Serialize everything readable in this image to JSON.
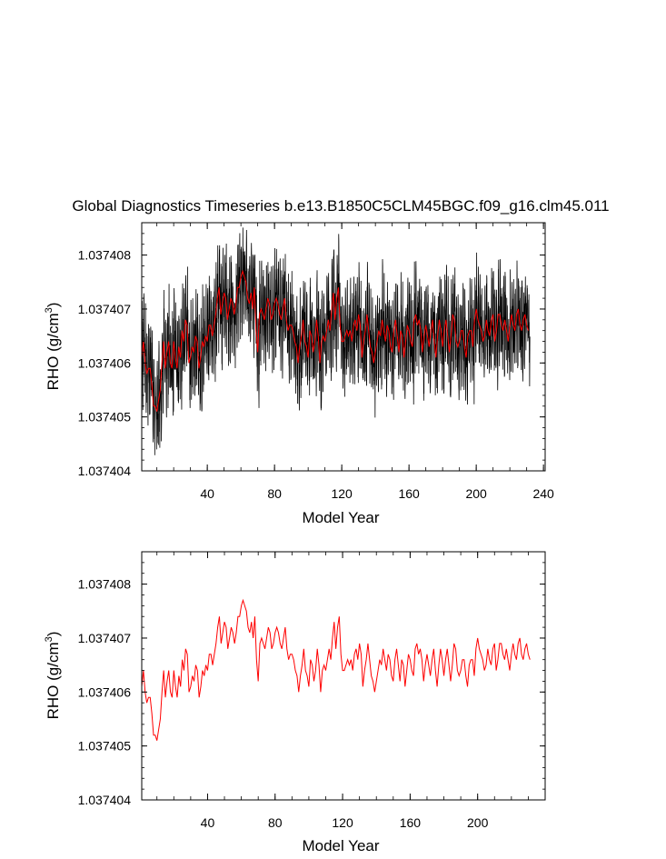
{
  "title": "Global Diagnostics Timeseries b.e13.B1850C5CLM45BGC.f09_g16.clm45.011",
  "colors": {
    "monthly": "#000000",
    "annual": "#ff0000",
    "axes": "#000000"
  },
  "chart_data": [
    {
      "type": "line",
      "xlabel": "Model Year",
      "ylabel": "RHO (g/cm",
      "ylabel_sup": "3",
      "ylabel_close": ")",
      "xlim": [
        1,
        241
      ],
      "ylim": [
        1.037404,
        1.0374086
      ],
      "xticks": [
        40,
        80,
        120,
        160,
        200,
        240
      ],
      "xtick_labels": [
        "40",
        "80",
        "120",
        "160",
        "200",
        "240"
      ],
      "yticks": [
        1.037404,
        1.037405,
        1.037406,
        1.037407,
        1.037408
      ],
      "ytick_labels": [
        "1.037404",
        "1.037405",
        "1.037406",
        "1.037407",
        "1.037408"
      ],
      "series": [
        {
          "style": "monthly-black",
          "seed": 7,
          "amplitude": 7.5e-07
        },
        {
          "style": "annual-red",
          "ref": "annual_values"
        }
      ]
    },
    {
      "type": "line",
      "xlabel": "Model Year",
      "ylabel": "RHO (g/cm",
      "ylabel_sup": "3",
      "ylabel_close": ")",
      "xlim": [
        1,
        240
      ],
      "ylim": [
        1.037404,
        1.0374086
      ],
      "xticks": [
        40,
        80,
        120,
        160,
        200
      ],
      "xtick_labels": [
        "40",
        "80",
        "120",
        "160",
        "200"
      ],
      "yticks": [
        1.037404,
        1.037405,
        1.037406,
        1.037407,
        1.037408
      ],
      "ytick_labels": [
        "1.037404",
        "1.037405",
        "1.037406",
        "1.037407",
        "1.037408"
      ],
      "series": [
        {
          "style": "annual-red",
          "ref": "annual_values"
        }
      ]
    }
  ],
  "annual_values": {
    "x_start": 1,
    "x_step": 1,
    "values": [
      1.0374061,
      1.0374064,
      1.037406,
      1.0374058,
      1.0374059,
      1.0374059,
      1.0374056,
      1.0374052,
      1.0374052,
      1.0374051,
      1.0374053,
      1.0374055,
      1.037406,
      1.0374064,
      1.0374059,
      1.0374062,
      1.0374064,
      1.037406,
      1.0374059,
      1.0374064,
      1.0374061,
      1.0374059,
      1.0374063,
      1.0374061,
      1.0374066,
      1.0374064,
      1.0374068,
      1.0374067,
      1.037406,
      1.0374061,
      1.0374063,
      1.0374062,
      1.0374065,
      1.0374064,
      1.0374059,
      1.0374061,
      1.0374064,
      1.0374063,
      1.0374065,
      1.0374064,
      1.0374067,
      1.0374067,
      1.0374065,
      1.0374067,
      1.0374069,
      1.0374072,
      1.0374074,
      1.0374069,
      1.0374071,
      1.0374073,
      1.0374072,
      1.0374068,
      1.037407,
      1.0374072,
      1.0374071,
      1.0374069,
      1.0374071,
      1.0374074,
      1.0374074,
      1.0374076,
      1.0374077,
      1.0374076,
      1.0374075,
      1.0374072,
      1.0374071,
      1.0374073,
      1.037407,
      1.0374074,
      1.0374066,
      1.0374062,
      1.0374069,
      1.037407,
      1.0374069,
      1.0374068,
      1.037407,
      1.0374072,
      1.0374071,
      1.0374068,
      1.0374069,
      1.0374071,
      1.0374072,
      1.0374071,
      1.0374069,
      1.0374068,
      1.037407,
      1.0374072,
      1.0374068,
      1.0374066,
      1.0374067,
      1.0374067,
      1.0374066,
      1.0374064,
      1.0374063,
      1.037406,
      1.0374063,
      1.0374065,
      1.0374068,
      1.0374064,
      1.0374063,
      1.0374061,
      1.0374066,
      1.0374065,
      1.0374062,
      1.0374064,
      1.0374068,
      1.0374065,
      1.037406,
      1.0374064,
      1.0374065,
      1.0374064,
      1.0374066,
      1.0374068,
      1.0374066,
      1.037407,
      1.0374073,
      1.0374068,
      1.0374072,
      1.0374074,
      1.0374067,
      1.0374064,
      1.0374064,
      1.0374065,
      1.0374066,
      1.0374065,
      1.0374066,
      1.0374064,
      1.0374067,
      1.0374068,
      1.0374066,
      1.0374069,
      1.0374067,
      1.0374061,
      1.0374064,
      1.0374066,
      1.0374069,
      1.0374066,
      1.0374063,
      1.0374062,
      1.037406,
      1.0374062,
      1.0374064,
      1.0374066,
      1.0374065,
      1.0374068,
      1.0374066,
      1.0374064,
      1.0374067,
      1.0374066,
      1.0374063,
      1.0374062,
      1.0374066,
      1.0374068,
      1.0374065,
      1.0374062,
      1.0374066,
      1.0374065,
      1.0374061,
      1.0374064,
      1.0374067,
      1.0374066,
      1.0374064,
      1.0374063,
      1.0374068,
      1.0374069,
      1.0374067,
      1.0374068,
      1.0374066,
      1.0374062,
      1.0374065,
      1.0374067,
      1.0374065,
      1.0374063,
      1.0374066,
      1.0374068,
      1.0374064,
      1.0374061,
      1.0374065,
      1.0374068,
      1.0374066,
      1.0374063,
      1.0374066,
      1.0374068,
      1.0374065,
      1.0374062,
      1.0374065,
      1.0374069,
      1.0374068,
      1.0374064,
      1.0374063,
      1.0374064,
      1.0374066,
      1.0374066,
      1.0374063,
      1.0374061,
      1.0374065,
      1.0374066,
      1.0374066,
      1.0374063,
      1.0374068,
      1.037407,
      1.0374068,
      1.0374067,
      1.0374066,
      1.0374064,
      1.0374065,
      1.0374068,
      1.0374066,
      1.0374065,
      1.0374068,
      1.0374069,
      1.0374064,
      1.0374066,
      1.0374069,
      1.0374069,
      1.0374067,
      1.0374066,
      1.0374068,
      1.0374066,
      1.0374064,
      1.0374067,
      1.0374069,
      1.0374067,
      1.0374066,
      1.0374069,
      1.037407,
      1.0374067,
      1.0374066,
      1.0374068,
      1.0374069,
      1.0374067,
      1.0374066
    ]
  }
}
